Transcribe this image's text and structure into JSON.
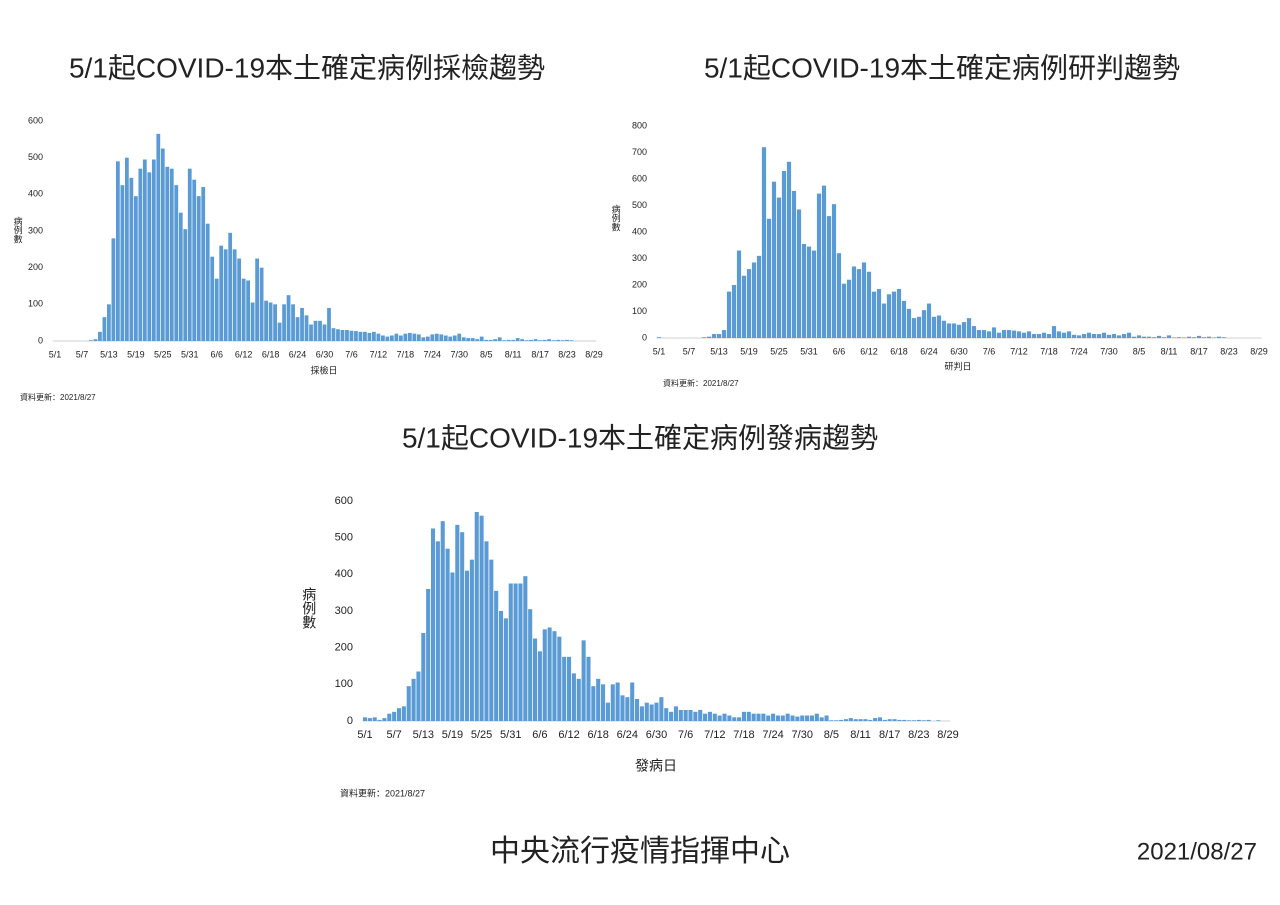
{
  "chart_data": [
    {
      "type": "bar",
      "title": "5/1起COVID-19本土確定病例採檢趨勢",
      "y_label": "病例數",
      "x_label": "採檢日",
      "note": "資料更新：2021/8/27",
      "color": "#5b9bd5",
      "ylim": [
        0,
        600
      ],
      "yticks": [
        0,
        100,
        200,
        300,
        400,
        500,
        600
      ],
      "categories": [
        "5/1",
        null,
        null,
        null,
        null,
        null,
        "5/7",
        null,
        null,
        null,
        null,
        null,
        "5/13",
        null,
        null,
        null,
        null,
        null,
        "5/19",
        null,
        null,
        null,
        null,
        null,
        "5/25",
        null,
        null,
        null,
        null,
        null,
        "5/31",
        null,
        null,
        null,
        null,
        null,
        "6/6",
        null,
        null,
        null,
        null,
        null,
        "6/12",
        null,
        null,
        null,
        null,
        null,
        "6/18",
        null,
        null,
        null,
        null,
        null,
        "6/24",
        null,
        null,
        null,
        null,
        null,
        "6/30",
        null,
        null,
        null,
        null,
        null,
        "7/6",
        null,
        null,
        null,
        null,
        null,
        "7/12",
        null,
        null,
        null,
        null,
        null,
        "7/18",
        null,
        null,
        null,
        null,
        null,
        "7/24",
        null,
        null,
        null,
        null,
        null,
        "7/30",
        null,
        null,
        null,
        null,
        null,
        "8/5",
        null,
        null,
        null,
        null,
        null,
        "8/11",
        null,
        null,
        null,
        null,
        null,
        "8/17",
        null,
        null,
        null,
        null,
        null,
        "8/23",
        null,
        null,
        null,
        null,
        null,
        "8/29"
      ],
      "values": [
        0,
        0,
        0,
        0,
        0,
        0,
        0,
        0,
        2,
        5,
        25,
        65,
        100,
        280,
        490,
        425,
        500,
        445,
        395,
        470,
        495,
        460,
        495,
        565,
        525,
        475,
        470,
        425,
        350,
        305,
        470,
        440,
        395,
        420,
        320,
        230,
        170,
        260,
        250,
        295,
        250,
        225,
        170,
        165,
        105,
        225,
        200,
        110,
        105,
        100,
        50,
        100,
        125,
        100,
        65,
        90,
        70,
        45,
        55,
        55,
        45,
        90,
        35,
        32,
        30,
        30,
        28,
        27,
        25,
        25,
        22,
        25,
        20,
        15,
        12,
        15,
        20,
        15,
        20,
        22,
        20,
        18,
        10,
        12,
        18,
        20,
        18,
        15,
        12,
        15,
        20,
        10,
        8,
        8,
        5,
        12,
        3,
        3,
        5,
        10,
        2,
        3,
        3,
        8,
        5,
        2,
        3,
        5,
        2,
        3,
        5,
        2,
        3,
        2,
        3,
        2,
        0,
        0,
        0,
        0,
        0
      ]
    },
    {
      "type": "bar",
      "title": "5/1起COVID-19本土確定病例研判趨勢",
      "y_label": "病例數",
      "x_label": "研判日",
      "note": "資料更新：2021/8/27",
      "color": "#5b9bd5",
      "ylim": [
        0,
        800
      ],
      "yticks": [
        0,
        100,
        200,
        300,
        400,
        500,
        600,
        700,
        800
      ],
      "categories": [
        "5/1",
        null,
        null,
        null,
        null,
        null,
        "5/7",
        null,
        null,
        null,
        null,
        null,
        "5/13",
        null,
        null,
        null,
        null,
        null,
        "5/19",
        null,
        null,
        null,
        null,
        null,
        "5/25",
        null,
        null,
        null,
        null,
        null,
        "5/31",
        null,
        null,
        null,
        null,
        null,
        "6/6",
        null,
        null,
        null,
        null,
        null,
        "6/12",
        null,
        null,
        null,
        null,
        null,
        "6/18",
        null,
        null,
        null,
        null,
        null,
        "6/24",
        null,
        null,
        null,
        null,
        null,
        "6/30",
        null,
        null,
        null,
        null,
        null,
        "7/6",
        null,
        null,
        null,
        null,
        null,
        "7/12",
        null,
        null,
        null,
        null,
        null,
        "7/18",
        null,
        null,
        null,
        null,
        null,
        "7/24",
        null,
        null,
        null,
        null,
        null,
        "7/30",
        null,
        null,
        null,
        null,
        null,
        "8/5",
        null,
        null,
        null,
        null,
        null,
        "8/11",
        null,
        null,
        null,
        null,
        null,
        "8/17",
        null,
        null,
        null,
        null,
        null,
        "8/23",
        null,
        null,
        null,
        null,
        null,
        "8/29"
      ],
      "values": [
        3,
        0,
        0,
        0,
        0,
        0,
        0,
        0,
        0,
        3,
        5,
        15,
        15,
        30,
        175,
        200,
        330,
        235,
        260,
        285,
        310,
        720,
        450,
        590,
        530,
        630,
        665,
        555,
        485,
        355,
        345,
        330,
        545,
        575,
        460,
        505,
        320,
        205,
        220,
        270,
        260,
        285,
        250,
        175,
        185,
        130,
        165,
        175,
        185,
        140,
        110,
        75,
        80,
        105,
        130,
        80,
        85,
        65,
        55,
        55,
        50,
        60,
        75,
        45,
        30,
        30,
        25,
        40,
        20,
        30,
        30,
        28,
        25,
        20,
        25,
        15,
        15,
        20,
        15,
        45,
        25,
        20,
        25,
        12,
        10,
        15,
        20,
        15,
        15,
        20,
        12,
        15,
        10,
        15,
        20,
        5,
        10,
        5,
        5,
        3,
        8,
        3,
        10,
        2,
        3,
        2,
        5,
        3,
        8,
        3,
        5,
        2,
        5,
        3,
        0,
        0,
        0,
        0,
        0,
        0,
        0
      ]
    },
    {
      "type": "bar",
      "title": "5/1起COVID-19本土確定病例發病趨勢",
      "y_label": "病例數",
      "x_label": "發病日",
      "note": "資料更新：2021/8/27",
      "color": "#5b9bd5",
      "ylim": [
        0,
        600
      ],
      "yticks": [
        0,
        100,
        200,
        300,
        400,
        500,
        600
      ],
      "categories": [
        "5/1",
        null,
        null,
        null,
        null,
        null,
        "5/7",
        null,
        null,
        null,
        null,
        null,
        "5/13",
        null,
        null,
        null,
        null,
        null,
        "5/19",
        null,
        null,
        null,
        null,
        null,
        "5/25",
        null,
        null,
        null,
        null,
        null,
        "5/31",
        null,
        null,
        null,
        null,
        null,
        "6/6",
        null,
        null,
        null,
        null,
        null,
        "6/12",
        null,
        null,
        null,
        null,
        null,
        "6/18",
        null,
        null,
        null,
        null,
        null,
        "6/24",
        null,
        null,
        null,
        null,
        null,
        "6/30",
        null,
        null,
        null,
        null,
        null,
        "7/6",
        null,
        null,
        null,
        null,
        null,
        "7/12",
        null,
        null,
        null,
        null,
        null,
        "7/18",
        null,
        null,
        null,
        null,
        null,
        "7/24",
        null,
        null,
        null,
        null,
        null,
        "7/30",
        null,
        null,
        null,
        null,
        null,
        "8/5",
        null,
        null,
        null,
        null,
        null,
        "8/11",
        null,
        null,
        null,
        null,
        null,
        "8/17",
        null,
        null,
        null,
        null,
        null,
        "8/23",
        null,
        null,
        null,
        null,
        null,
        "8/29"
      ],
      "values": [
        10,
        8,
        10,
        3,
        8,
        20,
        25,
        35,
        40,
        95,
        115,
        135,
        240,
        360,
        525,
        490,
        545,
        470,
        405,
        535,
        515,
        410,
        440,
        570,
        560,
        490,
        440,
        355,
        300,
        280,
        375,
        375,
        375,
        395,
        305,
        225,
        190,
        250,
        255,
        245,
        230,
        175,
        175,
        130,
        115,
        220,
        175,
        95,
        115,
        100,
        50,
        100,
        105,
        70,
        65,
        105,
        60,
        40,
        50,
        45,
        50,
        65,
        35,
        25,
        40,
        30,
        30,
        30,
        25,
        30,
        20,
        25,
        20,
        15,
        20,
        15,
        10,
        10,
        25,
        25,
        20,
        20,
        20,
        15,
        20,
        15,
        15,
        20,
        15,
        12,
        15,
        15,
        15,
        20,
        10,
        15,
        2,
        2,
        3,
        5,
        8,
        5,
        5,
        5,
        3,
        8,
        10,
        3,
        5,
        5,
        3,
        3,
        2,
        2,
        3,
        2,
        3,
        0,
        2,
        0,
        0
      ]
    }
  ],
  "footer": {
    "organization": "中央流行疫情指揮中心",
    "date": "2021/08/27"
  }
}
